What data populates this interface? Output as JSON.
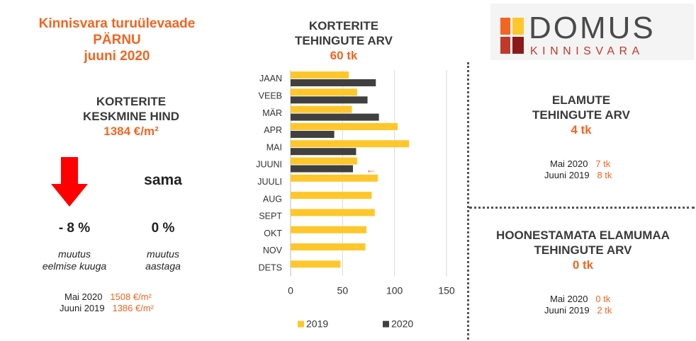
{
  "header": {
    "title_line1": "Kinnisvara turuülevaade",
    "title_line2": "PÄRNU",
    "title_line3": "juuni 2020"
  },
  "price": {
    "title_line1": "KORTERITE",
    "title_line2": "KESKMINE HIND",
    "value": "1384 €/m²",
    "monthly_change": "- 8 %",
    "monthly_label_line1": "muutus",
    "monthly_label_line2": "eelmise kuuga",
    "yearly_status": "sama",
    "yearly_change": "0 %",
    "yearly_label_line1": "muutus",
    "yearly_label_line2": "aastaga",
    "ref1_label": "Mai 2020",
    "ref1_value": "1508 €/m²",
    "ref2_label": "Juuni 2019",
    "ref2_value": "1386 €/m²",
    "arrow_color": "#ff0000"
  },
  "chart_header": {
    "title_line1": "KORTERITE",
    "title_line2": "TEHINGUTE ARV",
    "value": "60 tk"
  },
  "chart_data": {
    "type": "bar",
    "orientation": "horizontal",
    "categories": [
      "JAAN",
      "VEEB",
      "MÄR",
      "APR",
      "MAI",
      "JUUNI",
      "JUULI",
      "AUG",
      "SEPT",
      "OKT",
      "NOV",
      "DETS"
    ],
    "series": [
      {
        "name": "2019",
        "color": "#ffc72c",
        "values": [
          56,
          64,
          59,
          103,
          114,
          64,
          84,
          78,
          81,
          73,
          72,
          48
        ]
      },
      {
        "name": "2020",
        "color": "#404040",
        "values": [
          82,
          74,
          85,
          42,
          63,
          60,
          null,
          null,
          null,
          null,
          null,
          null
        ]
      }
    ],
    "xlim": [
      0,
      150
    ],
    "xticks": [
      0,
      50,
      100,
      150
    ],
    "grid": true,
    "legend": "bottom",
    "annotation": {
      "text": "←",
      "category": "JUUNI",
      "color": "#f26522"
    }
  },
  "houses": {
    "title_line1": "ELAMUTE",
    "title_line2": "TEHINGUTE ARV",
    "value": "4 tk",
    "ref1_label": "Mai 2020",
    "ref1_value": "7 tk",
    "ref2_label": "Juuni 2019",
    "ref2_value": "8 tk"
  },
  "land": {
    "title_line1": "HOONESTAMATA ELAMUMAA",
    "title_line2": "TEHINGUTE ARV",
    "value": "0 tk",
    "ref1_label": "Mai 2020",
    "ref1_value": "0 tk",
    "ref2_label": "Juuni 2019",
    "ref2_value": "2 tk"
  },
  "logo": {
    "name": "DOMUS",
    "subtitle": "KINNISVARA",
    "colors": [
      "#f26522",
      "#ffc72c",
      "#c0392b",
      "#8b1a1a"
    ]
  }
}
